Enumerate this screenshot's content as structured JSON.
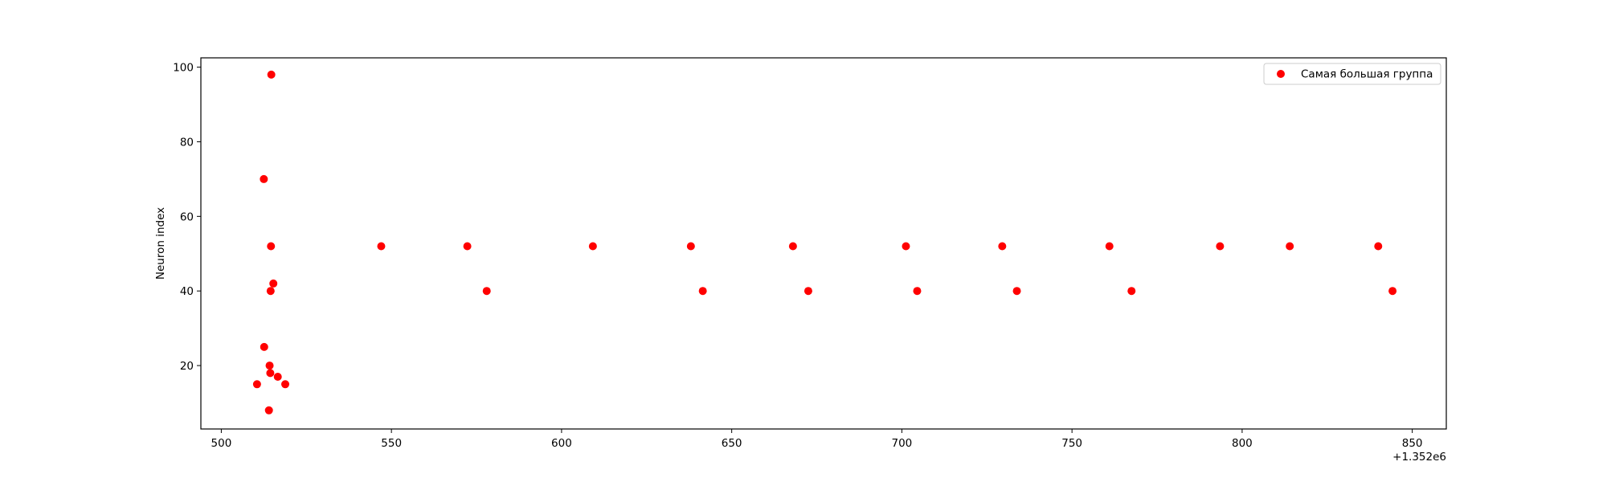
{
  "chart_data": {
    "type": "scatter",
    "title": "",
    "xlabel": "",
    "ylabel": "Neuron index",
    "x_offset_label": "+1.352e6",
    "xlim": [
      494,
      860
    ],
    "ylim": [
      3,
      102.5
    ],
    "x_ticks": [
      500,
      550,
      600,
      650,
      700,
      750,
      800,
      850
    ],
    "y_ticks": [
      20,
      40,
      60,
      80,
      100
    ],
    "grid": false,
    "legend_position": "top-right",
    "colors": {
      "series": "#ff0000",
      "axes": "#000000",
      "legend_border": "#cccccc"
    },
    "series": [
      {
        "name": "Самая большая группа",
        "marker": "circle",
        "points": [
          {
            "x": 510.5,
            "y": 15
          },
          {
            "x": 512.5,
            "y": 70
          },
          {
            "x": 512.6,
            "y": 25
          },
          {
            "x": 514.0,
            "y": 8
          },
          {
            "x": 514.2,
            "y": 20
          },
          {
            "x": 514.4,
            "y": 18
          },
          {
            "x": 514.5,
            "y": 40
          },
          {
            "x": 514.6,
            "y": 52
          },
          {
            "x": 514.7,
            "y": 98
          },
          {
            "x": 515.3,
            "y": 42
          },
          {
            "x": 516.6,
            "y": 17
          },
          {
            "x": 518.8,
            "y": 15
          },
          {
            "x": 547.0,
            "y": 52
          },
          {
            "x": 572.3,
            "y": 52
          },
          {
            "x": 578.0,
            "y": 40
          },
          {
            "x": 609.2,
            "y": 52
          },
          {
            "x": 638.0,
            "y": 52
          },
          {
            "x": 641.5,
            "y": 40
          },
          {
            "x": 668.0,
            "y": 52
          },
          {
            "x": 672.5,
            "y": 40
          },
          {
            "x": 701.2,
            "y": 52
          },
          {
            "x": 704.5,
            "y": 40
          },
          {
            "x": 729.5,
            "y": 52
          },
          {
            "x": 733.8,
            "y": 40
          },
          {
            "x": 761.0,
            "y": 52
          },
          {
            "x": 767.5,
            "y": 40
          },
          {
            "x": 793.5,
            "y": 52
          },
          {
            "x": 814.0,
            "y": 52
          },
          {
            "x": 840.0,
            "y": 52
          },
          {
            "x": 844.2,
            "y": 40
          }
        ]
      }
    ]
  }
}
